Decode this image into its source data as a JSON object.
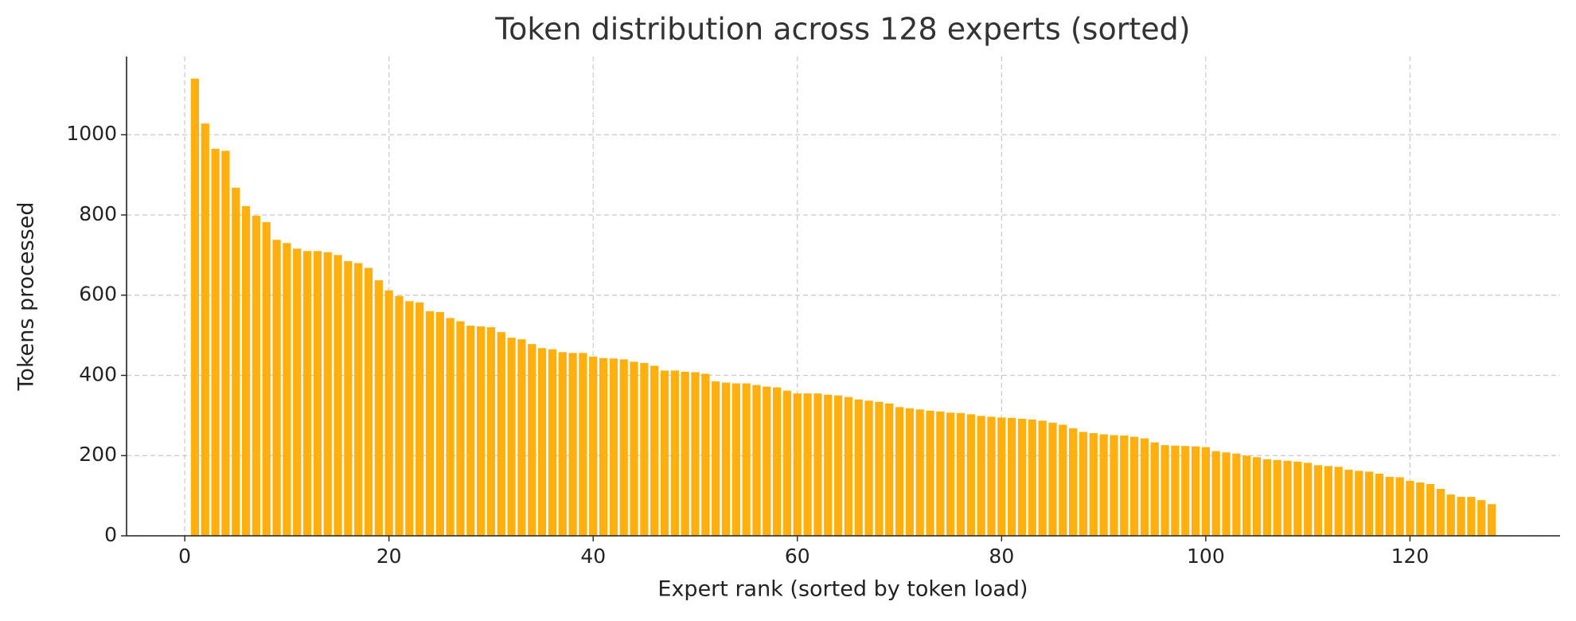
{
  "chart_data": {
    "type": "bar",
    "title": "Token distribution across 128 experts (sorted)",
    "xlabel": "Expert rank (sorted by token load)",
    "ylabel": "Tokens processed",
    "x": [
      1,
      2,
      3,
      4,
      5,
      6,
      7,
      8,
      9,
      10,
      11,
      12,
      13,
      14,
      15,
      16,
      17,
      18,
      19,
      20,
      21,
      22,
      23,
      24,
      25,
      26,
      27,
      28,
      29,
      30,
      31,
      32,
      33,
      34,
      35,
      36,
      37,
      38,
      39,
      40,
      41,
      42,
      43,
      44,
      45,
      46,
      47,
      48,
      49,
      50,
      51,
      52,
      53,
      54,
      55,
      56,
      57,
      58,
      59,
      60,
      61,
      62,
      63,
      64,
      65,
      66,
      67,
      68,
      69,
      70,
      71,
      72,
      73,
      74,
      75,
      76,
      77,
      78,
      79,
      80,
      81,
      82,
      83,
      84,
      85,
      86,
      87,
      88,
      89,
      90,
      91,
      92,
      93,
      94,
      95,
      96,
      97,
      98,
      99,
      100,
      101,
      102,
      103,
      104,
      105,
      106,
      107,
      108,
      109,
      110,
      111,
      112,
      113,
      114,
      115,
      116,
      117,
      118,
      119,
      120,
      121,
      122,
      123,
      124,
      125,
      126,
      127,
      128
    ],
    "values": [
      1140,
      1028,
      965,
      960,
      868,
      822,
      798,
      782,
      738,
      730,
      716,
      710,
      710,
      707,
      700,
      685,
      680,
      668,
      637,
      612,
      598,
      585,
      582,
      560,
      558,
      543,
      535,
      524,
      522,
      520,
      508,
      494,
      490,
      478,
      468,
      465,
      458,
      456,
      456,
      447,
      443,
      442,
      440,
      434,
      431,
      424,
      412,
      412,
      409,
      408,
      404,
      385,
      382,
      380,
      380,
      376,
      372,
      370,
      362,
      355,
      355,
      355,
      352,
      350,
      346,
      340,
      337,
      334,
      330,
      321,
      318,
      315,
      312,
      310,
      307,
      306,
      303,
      299,
      297,
      295,
      294,
      292,
      290,
      287,
      282,
      277,
      268,
      259,
      256,
      253,
      251,
      250,
      247,
      243,
      233,
      226,
      225,
      224,
      223,
      221,
      211,
      208,
      205,
      200,
      196,
      191,
      189,
      187,
      185,
      182,
      176,
      174,
      172,
      165,
      162,
      160,
      155,
      147,
      146,
      137,
      133,
      129,
      117,
      103,
      97,
      97,
      89,
      79
    ],
    "color": "#ffb00f",
    "xlim": [
      -5.7,
      134.7
    ],
    "xticks": [
      0,
      20,
      40,
      60,
      80,
      100,
      120
    ],
    "ylim": [
      0,
      1195
    ],
    "yticks": [
      0,
      200,
      400,
      600,
      800,
      1000
    ],
    "grid": true
  }
}
